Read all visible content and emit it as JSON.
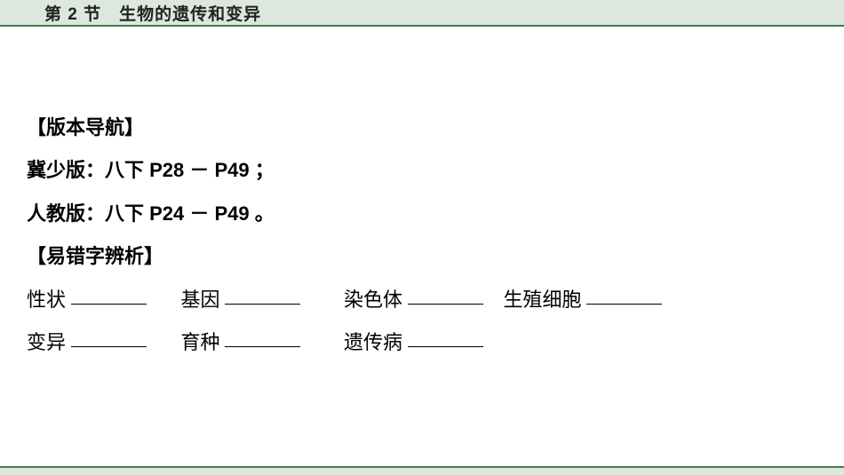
{
  "header": {
    "title": "第 2 节　生物的遗传和变异"
  },
  "sections": {
    "nav_title": "【版本导航】",
    "ji_line": "冀少版：八下 P28 － P49 ；",
    "ren_line": "人教版：八下 P24 － P49 。",
    "mistake_title": "【易错字辨析】"
  },
  "terms_row1": {
    "t1": "性状",
    "t2": "基因",
    "t3": "染色体",
    "t4": "生殖细胞"
  },
  "terms_row2": {
    "t1": "变异",
    "t2": "育种",
    "t3": "遗传病"
  },
  "colors": {
    "header_bg": "#dce8de",
    "header_border": "#4a7a4f",
    "text": "#000000",
    "page_bg": "#ffffff"
  }
}
